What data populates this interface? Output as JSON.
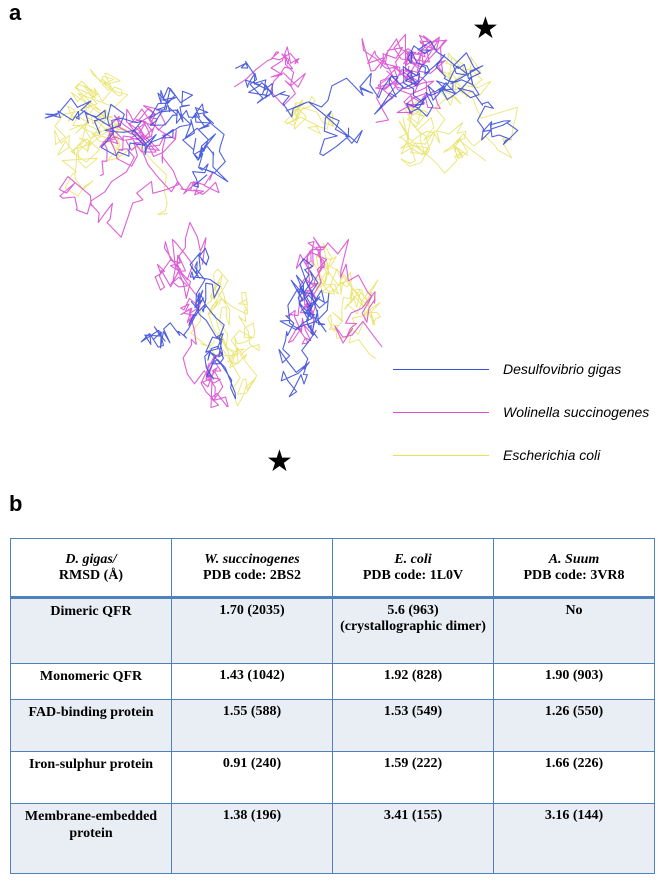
{
  "panel_a": {
    "label": "a",
    "legend": [
      {
        "name": "Desulfovibrio gigas",
        "color": "#3b4fd8"
      },
      {
        "name": "Wolinella succinogenes",
        "color": "#d94fd0"
      },
      {
        "name": "Escherichia coli",
        "color": "#e6e05a"
      }
    ],
    "marker": "★"
  },
  "panel_b": {
    "label": "b",
    "table": {
      "header": [
        {
          "line1": "D. gigas/",
          "line2": "RMSD (Å)",
          "italic_line1": true
        },
        {
          "line1": "W. succinogenes",
          "line2": "PDB code: 2BS2",
          "italic_line1": true
        },
        {
          "line1": "E. coli",
          "line2": "PDB code: 1L0V",
          "italic_line1": true
        },
        {
          "line1": "A.  Suum",
          "line2": "PDB code: 3VR8",
          "italic_line1": true
        }
      ],
      "rows": [
        {
          "label": "Dimeric QFR",
          "cells": [
            "1.70 (2035)",
            "5.6 (963) (crystallographic dimer)",
            "No"
          ]
        },
        {
          "label": "Monomeric QFR",
          "cells": [
            "1.43 (1042)",
            "1.92 (828)",
            "1.90 (903)"
          ]
        },
        {
          "label": "FAD-binding protein",
          "cells": [
            "1.55 (588)",
            "1.53 (549)",
            "1.26 (550)"
          ]
        },
        {
          "label": "Iron-sulphur protein",
          "cells": [
            "0.91 (240)",
            "1.59 (222)",
            "1.66 (226)"
          ]
        },
        {
          "label": "Membrane-embedded protein",
          "cells": [
            "1.38 (196)",
            "3.41 (155)",
            "3.16 (144)"
          ]
        }
      ]
    }
  }
}
